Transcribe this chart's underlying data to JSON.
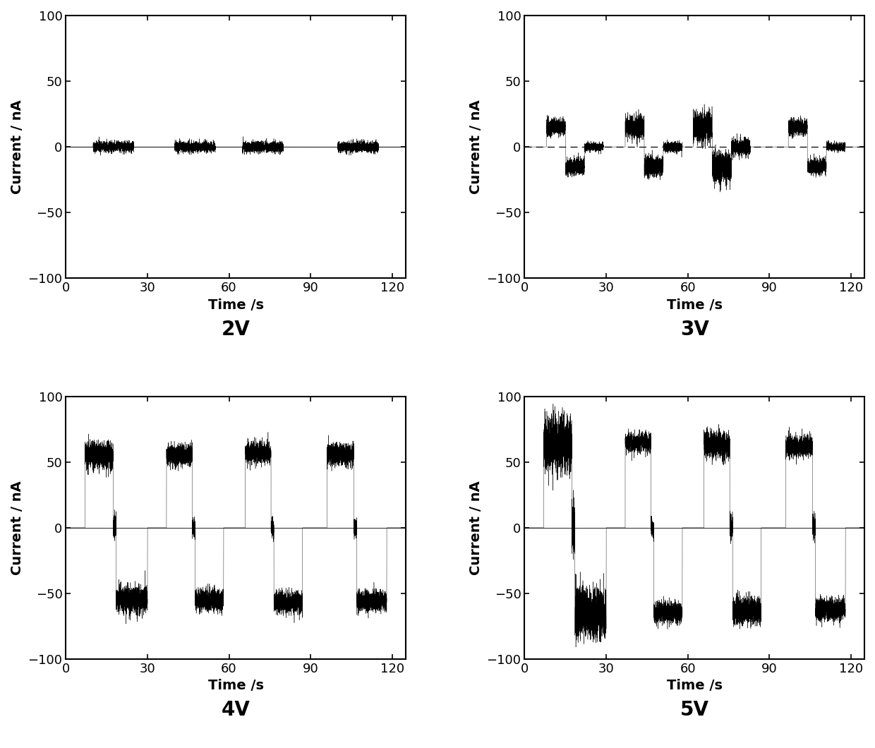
{
  "background_color": "#ffffff",
  "subplots": [
    {
      "label": "2V",
      "xlim": [
        0,
        125
      ],
      "ylim": [
        -100,
        100
      ],
      "xticks": [
        0,
        30,
        60,
        90,
        120
      ],
      "yticks": [
        -100,
        -50,
        0,
        50,
        100
      ],
      "xlabel": "Time /s",
      "ylabel": "Current / nA",
      "zero_line_style": "solid",
      "pulses": [
        {
          "t_on": 10,
          "t_off": 25,
          "amplitude": 0,
          "noise": 2.0
        },
        {
          "t_on": 40,
          "t_off": 55,
          "amplitude": 0,
          "noise": 2.0
        },
        {
          "t_on": 65,
          "t_off": 80,
          "amplitude": 0,
          "noise": 2.0
        },
        {
          "t_on": 100,
          "t_off": 115,
          "amplitude": 0,
          "noise": 2.0
        }
      ]
    },
    {
      "label": "3V",
      "xlim": [
        0,
        125
      ],
      "ylim": [
        -100,
        100
      ],
      "xticks": [
        0,
        30,
        60,
        90,
        120
      ],
      "yticks": [
        -100,
        -50,
        0,
        50,
        100
      ],
      "xlabel": "Time /s",
      "ylabel": "Current / nA",
      "zero_line_style": "dashed",
      "pulses": [
        {
          "t_on": 8,
          "t_off": 29,
          "amplitude": 15,
          "noise": 3.0
        },
        {
          "t_on": 37,
          "t_off": 58,
          "amplitude": 15,
          "noise": 4.0
        },
        {
          "t_on": 62,
          "t_off": 83,
          "amplitude": 15,
          "noise": 6.0
        },
        {
          "t_on": 97,
          "t_off": 118,
          "amplitude": 15,
          "noise": 3.0
        }
      ]
    },
    {
      "label": "4V",
      "xlim": [
        0,
        125
      ],
      "ylim": [
        -100,
        100
      ],
      "xticks": [
        0,
        30,
        60,
        90,
        120
      ],
      "yticks": [
        -100,
        -50,
        0,
        50,
        100
      ],
      "xlabel": "Time /s",
      "ylabel": "Current / nA",
      "zero_line_style": "solid",
      "pulses": [
        {
          "t_on": 7,
          "t_off": 30,
          "amplitude": 55,
          "noise": 5.0
        },
        {
          "t_on": 37,
          "t_off": 58,
          "amplitude": 55,
          "noise": 4.0
        },
        {
          "t_on": 66,
          "t_off": 87,
          "amplitude": 57,
          "noise": 4.0
        },
        {
          "t_on": 96,
          "t_off": 118,
          "amplitude": 56,
          "noise": 4.0
        }
      ]
    },
    {
      "label": "5V",
      "xlim": [
        0,
        125
      ],
      "ylim": [
        -100,
        100
      ],
      "xticks": [
        0,
        30,
        60,
        90,
        120
      ],
      "yticks": [
        -100,
        -50,
        0,
        50,
        100
      ],
      "xlabel": "Time /s",
      "ylabel": "Current / nA",
      "zero_line_style": "solid",
      "pulses": [
        {
          "t_on": 7,
          "t_off": 30,
          "amplitude": 65,
          "noise": 10.0
        },
        {
          "t_on": 37,
          "t_off": 58,
          "amplitude": 65,
          "noise": 4.0
        },
        {
          "t_on": 66,
          "t_off": 87,
          "amplitude": 63,
          "noise": 5.0
        },
        {
          "t_on": 96,
          "t_off": 118,
          "amplitude": 62,
          "noise": 4.0
        }
      ]
    }
  ],
  "label_fontsize": 20,
  "tick_fontsize": 13,
  "axis_label_fontsize": 14,
  "line_color": "#000000",
  "face_color": "#ffffff",
  "spine_color": "#000000",
  "spine_linewidth": 1.5
}
